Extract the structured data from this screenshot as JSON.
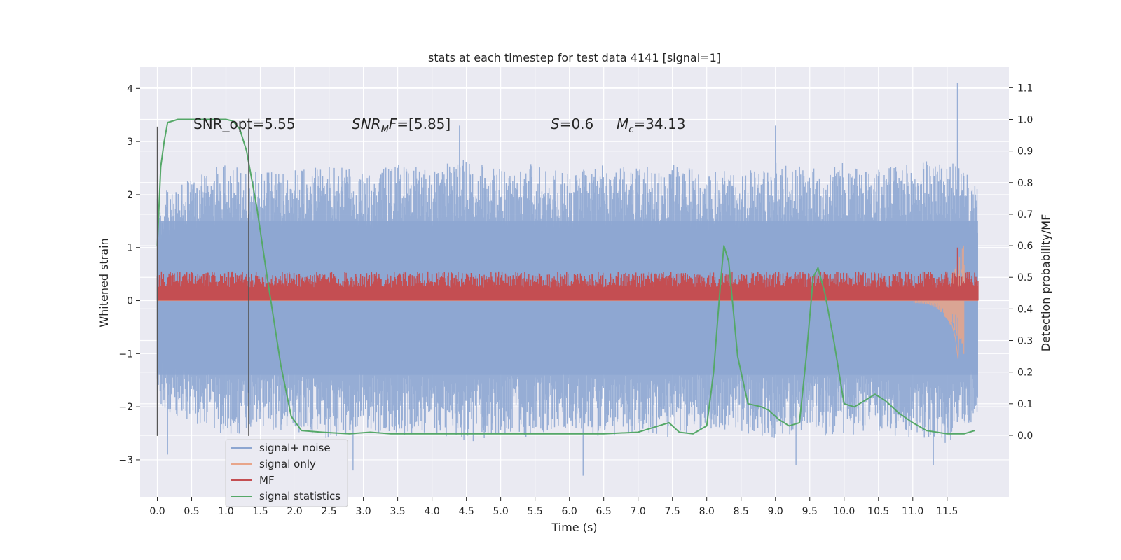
{
  "chart_data": {
    "type": "line",
    "title": "stats at each timestep for test data 4141 [signal=1]",
    "xlabel": "Time (s)",
    "ylabel": "Whitened strain",
    "y2label": "Detection probability/MF",
    "xlim": [
      -0.25,
      12.4
    ],
    "ylim": [
      -3.7,
      4.4
    ],
    "y2lim": [
      -0.195,
      1.165
    ],
    "x_ticks": [
      "0.0",
      "0.5",
      "1.0",
      "1.5",
      "2.0",
      "2.5",
      "3.0",
      "3.5",
      "4.0",
      "4.5",
      "5.0",
      "5.5",
      "6.0",
      "6.5",
      "7.0",
      "7.5",
      "8.0",
      "8.5",
      "9.0",
      "9.5",
      "10.0",
      "10.5",
      "11.0",
      "11.5"
    ],
    "y_ticks": [
      "4",
      "3",
      "2",
      "1",
      "0",
      "−1",
      "−2",
      "−3"
    ],
    "y2_ticks": [
      "1.1",
      "1.0",
      "0.9",
      "0.8",
      "0.7",
      "0.6",
      "0.5",
      "0.4",
      "0.3",
      "0.2",
      "0.1",
      "0.0"
    ],
    "grid": true,
    "legend_position": "lower-left",
    "annotations": {
      "snr_opt": "SNR_opt=5.55",
      "snr_mf": "=[5.85]",
      "snr_mf_var": "SNR",
      "snr_mf_sub": "M",
      "snr_mf_tail": "F",
      "s_var": "S",
      "s_val": "=0.6",
      "mc_var": "M",
      "mc_sub": "c",
      "mc_val": "=34.13"
    },
    "vlines": [
      0.0,
      1.33
    ],
    "series": [
      {
        "name": "signal+ noise",
        "color": "#8da6d1",
        "axis": "left",
        "description_values": "noise band approximately between -2.5 and 2.5 with spikes",
        "envelope_upper": [
          [
            0.0,
            2.0
          ],
          [
            0.5,
            2.3
          ],
          [
            1.0,
            2.6
          ],
          [
            1.5,
            2.4
          ],
          [
            2.0,
            2.5
          ],
          [
            2.5,
            2.6
          ],
          [
            3.0,
            2.4
          ],
          [
            3.5,
            2.6
          ],
          [
            4.0,
            2.5
          ],
          [
            4.5,
            2.7
          ],
          [
            5.0,
            2.5
          ],
          [
            5.5,
            2.6
          ],
          [
            6.0,
            2.4
          ],
          [
            6.5,
            2.6
          ],
          [
            7.0,
            2.5
          ],
          [
            7.5,
            2.6
          ],
          [
            8.0,
            2.4
          ],
          [
            8.5,
            2.5
          ],
          [
            9.0,
            2.6
          ],
          [
            9.5,
            2.5
          ],
          [
            10.0,
            2.6
          ],
          [
            10.5,
            2.5
          ],
          [
            11.0,
            2.6
          ],
          [
            11.5,
            2.7
          ],
          [
            11.95,
            2.2
          ]
        ],
        "spikes": [
          [
            4.4,
            3.3
          ],
          [
            9.0,
            3.3
          ],
          [
            11.65,
            4.1
          ],
          [
            6.2,
            -3.3
          ],
          [
            2.85,
            -3.2
          ],
          [
            11.3,
            -3.1
          ],
          [
            0.15,
            -2.9
          ],
          [
            9.3,
            -3.1
          ]
        ]
      },
      {
        "name": "signal only",
        "color": "#e8a58a",
        "axis": "left",
        "points": [
          [
            0.0,
            0.0
          ],
          [
            11.0,
            0.0
          ],
          [
            11.3,
            0.08
          ],
          [
            11.45,
            -0.15
          ],
          [
            11.55,
            -0.35
          ],
          [
            11.62,
            -0.7
          ],
          [
            11.66,
            -1.1
          ],
          [
            11.7,
            0.5
          ],
          [
            11.72,
            0.6
          ],
          [
            11.75,
            0.0
          ],
          [
            11.95,
            0.0
          ]
        ]
      },
      {
        "name": "MF",
        "color": "#c44e52",
        "axis": "left",
        "band_lower": 0.0,
        "band_upper": 0.55,
        "spikes": [
          [
            11.65,
            1.0
          ]
        ]
      },
      {
        "name": "signal statistics",
        "color": "#55a868",
        "axis": "right",
        "points": [
          [
            0.0,
            0.6
          ],
          [
            0.05,
            0.85
          ],
          [
            0.1,
            0.93
          ],
          [
            0.15,
            0.99
          ],
          [
            0.3,
            1.0
          ],
          [
            0.8,
            1.0
          ],
          [
            1.0,
            1.0
          ],
          [
            1.1,
            0.995
          ],
          [
            1.2,
            0.97
          ],
          [
            1.3,
            0.9
          ],
          [
            1.45,
            0.72
          ],
          [
            1.6,
            0.5
          ],
          [
            1.8,
            0.22
          ],
          [
            1.95,
            0.06
          ],
          [
            2.1,
            0.015
          ],
          [
            2.4,
            0.01
          ],
          [
            2.8,
            0.005
          ],
          [
            3.1,
            0.01
          ],
          [
            3.4,
            0.005
          ],
          [
            4.0,
            0.005
          ],
          [
            5.0,
            0.005
          ],
          [
            5.5,
            0.005
          ],
          [
            6.0,
            0.005
          ],
          [
            6.5,
            0.005
          ],
          [
            7.0,
            0.01
          ],
          [
            7.3,
            0.03
          ],
          [
            7.45,
            0.04
          ],
          [
            7.6,
            0.01
          ],
          [
            7.8,
            0.005
          ],
          [
            8.0,
            0.03
          ],
          [
            8.1,
            0.2
          ],
          [
            8.2,
            0.48
          ],
          [
            8.25,
            0.6
          ],
          [
            8.32,
            0.55
          ],
          [
            8.45,
            0.25
          ],
          [
            8.6,
            0.1
          ],
          [
            8.8,
            0.09
          ],
          [
            8.9,
            0.08
          ],
          [
            9.05,
            0.05
          ],
          [
            9.2,
            0.03
          ],
          [
            9.35,
            0.04
          ],
          [
            9.45,
            0.25
          ],
          [
            9.55,
            0.5
          ],
          [
            9.62,
            0.53
          ],
          [
            9.72,
            0.45
          ],
          [
            9.85,
            0.3
          ],
          [
            10.0,
            0.1
          ],
          [
            10.15,
            0.09
          ],
          [
            10.3,
            0.11
          ],
          [
            10.45,
            0.13
          ],
          [
            10.6,
            0.11
          ],
          [
            10.8,
            0.07
          ],
          [
            11.0,
            0.04
          ],
          [
            11.2,
            0.015
          ],
          [
            11.5,
            0.005
          ],
          [
            11.75,
            0.005
          ],
          [
            11.9,
            0.015
          ]
        ]
      }
    ]
  }
}
